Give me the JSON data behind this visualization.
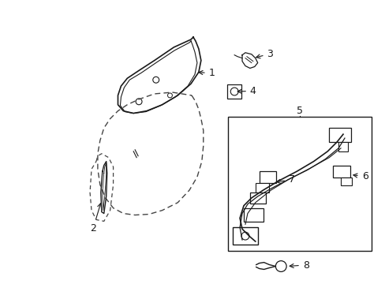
{
  "background_color": "#ffffff",
  "line_color": "#1a1a1a",
  "dashed_color": "#444444",
  "label_color": "#000000",
  "fig_width": 4.89,
  "fig_height": 3.6,
  "dpi": 100
}
